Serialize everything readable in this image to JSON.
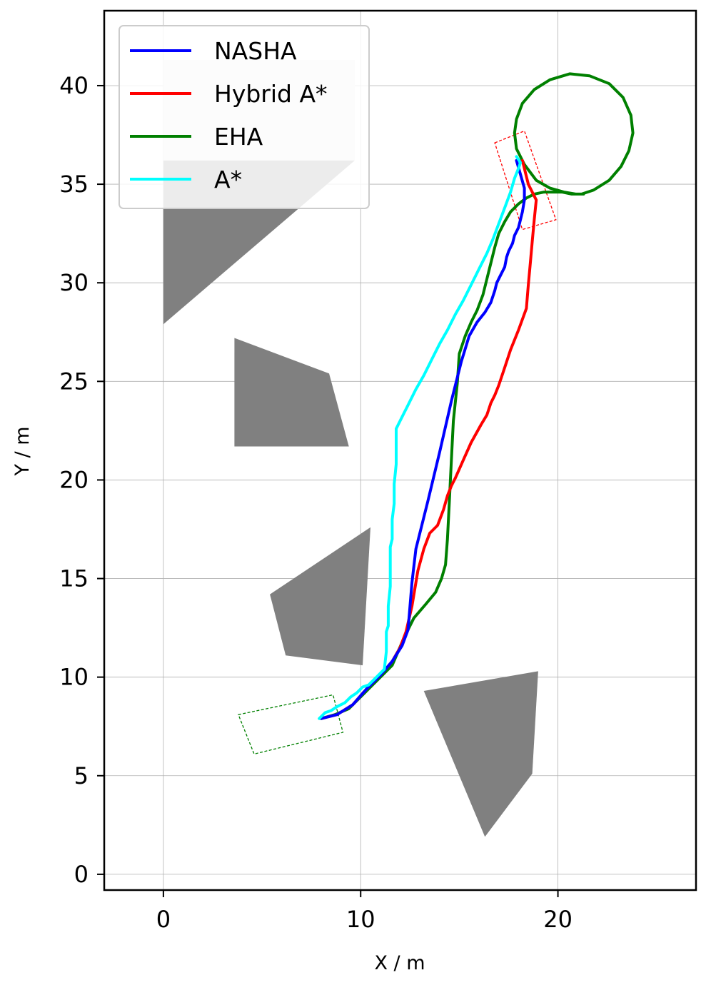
{
  "chart_data": {
    "type": "line",
    "xlabel": "X / m",
    "ylabel": "Y / m",
    "xlim": [
      -3.0,
      27.0
    ],
    "ylim": [
      -0.8,
      43.8
    ],
    "x_ticks": [
      0,
      10,
      20
    ],
    "y_ticks": [
      0,
      5,
      10,
      15,
      20,
      25,
      30,
      35,
      40
    ],
    "grid": true,
    "legend_position": "top-left",
    "series": [
      {
        "name": "NASHA",
        "color": "#0000ff",
        "points": [
          [
            8.0,
            7.9
          ],
          [
            8.8,
            8.1
          ],
          [
            9.6,
            8.6
          ],
          [
            10.3,
            9.4
          ],
          [
            11.0,
            10.1
          ],
          [
            11.6,
            10.8
          ],
          [
            12.1,
            11.6
          ],
          [
            12.4,
            12.4
          ],
          [
            12.6,
            14.8
          ],
          [
            12.8,
            16.5
          ],
          [
            13.4,
            18.9
          ],
          [
            14.0,
            21.4
          ],
          [
            14.6,
            24.0
          ],
          [
            15.1,
            26.0
          ],
          [
            15.5,
            27.3
          ],
          [
            15.9,
            28.0
          ],
          [
            16.3,
            28.5
          ],
          [
            16.6,
            29.0
          ],
          [
            16.8,
            29.6
          ],
          [
            16.9,
            30.0
          ],
          [
            17.1,
            30.4
          ],
          [
            17.3,
            30.8
          ],
          [
            17.4,
            31.3
          ],
          [
            17.5,
            31.6
          ],
          [
            17.7,
            32.0
          ],
          [
            17.8,
            32.4
          ],
          [
            18.0,
            32.8
          ],
          [
            18.1,
            33.2
          ],
          [
            18.2,
            33.6
          ],
          [
            18.3,
            34.2
          ],
          [
            18.3,
            34.8
          ],
          [
            18.1,
            35.5
          ],
          [
            17.9,
            36.2
          ]
        ]
      },
      {
        "name": "Hybrid A*",
        "color": "#ff0000",
        "points": [
          [
            8.0,
            7.9
          ],
          [
            8.8,
            8.1
          ],
          [
            9.6,
            8.6
          ],
          [
            10.3,
            9.4
          ],
          [
            11.0,
            10.1
          ],
          [
            11.6,
            10.8
          ],
          [
            12.0,
            11.5
          ],
          [
            12.3,
            12.3
          ],
          [
            12.6,
            13.6
          ],
          [
            12.9,
            15.4
          ],
          [
            13.2,
            16.5
          ],
          [
            13.5,
            17.3
          ],
          [
            13.9,
            17.7
          ],
          [
            14.2,
            18.5
          ],
          [
            14.4,
            19.2
          ],
          [
            14.6,
            19.7
          ],
          [
            14.8,
            20.1
          ],
          [
            15.2,
            21.0
          ],
          [
            15.6,
            21.9
          ],
          [
            16.1,
            22.8
          ],
          [
            16.4,
            23.3
          ],
          [
            16.6,
            23.9
          ],
          [
            16.8,
            24.3
          ],
          [
            17.0,
            24.8
          ],
          [
            17.3,
            25.7
          ],
          [
            17.6,
            26.6
          ],
          [
            18.0,
            27.6
          ],
          [
            18.4,
            28.7
          ],
          [
            18.5,
            29.9
          ],
          [
            18.6,
            31.0
          ],
          [
            18.7,
            32.1
          ],
          [
            18.8,
            33.2
          ],
          [
            18.9,
            34.2
          ],
          [
            18.5,
            35.0
          ],
          [
            18.3,
            35.8
          ],
          [
            18.2,
            36.2
          ]
        ]
      },
      {
        "name": "EHA",
        "color": "#008000",
        "points": [
          [
            8.0,
            7.9
          ],
          [
            8.7,
            8.1
          ],
          [
            9.4,
            8.4
          ],
          [
            10.0,
            9.0
          ],
          [
            10.6,
            9.6
          ],
          [
            11.1,
            10.1
          ],
          [
            11.6,
            10.6
          ],
          [
            11.9,
            11.3
          ],
          [
            12.2,
            12.0
          ],
          [
            12.7,
            13.0
          ],
          [
            13.3,
            13.7
          ],
          [
            13.8,
            14.3
          ],
          [
            14.1,
            15.0
          ],
          [
            14.3,
            15.7
          ],
          [
            14.4,
            17.0
          ],
          [
            14.5,
            19.0
          ],
          [
            14.6,
            21.0
          ],
          [
            14.7,
            23.0
          ],
          [
            14.9,
            24.9
          ],
          [
            15.0,
            26.4
          ],
          [
            15.3,
            27.3
          ],
          [
            15.6,
            28.0
          ],
          [
            15.9,
            28.6
          ],
          [
            16.2,
            29.4
          ],
          [
            16.4,
            30.2
          ],
          [
            16.6,
            31.0
          ],
          [
            16.8,
            31.8
          ],
          [
            17.0,
            32.5
          ],
          [
            17.3,
            33.1
          ],
          [
            17.6,
            33.6
          ],
          [
            18.0,
            34.0
          ],
          [
            18.4,
            34.3
          ],
          [
            18.8,
            34.5
          ],
          [
            19.3,
            34.6
          ],
          [
            19.8,
            34.6
          ],
          [
            20.2,
            34.6
          ],
          [
            20.7,
            34.5
          ],
          [
            21.2,
            34.5
          ],
          [
            21.8,
            34.7
          ],
          [
            22.6,
            35.2
          ],
          [
            23.2,
            35.9
          ],
          [
            23.6,
            36.7
          ],
          [
            23.8,
            37.6
          ],
          [
            23.7,
            38.5
          ],
          [
            23.3,
            39.4
          ],
          [
            22.6,
            40.1
          ],
          [
            21.6,
            40.5
          ],
          [
            20.6,
            40.6
          ],
          [
            19.6,
            40.3
          ],
          [
            18.8,
            39.8
          ],
          [
            18.2,
            39.1
          ],
          [
            17.9,
            38.3
          ],
          [
            17.8,
            37.6
          ],
          [
            17.9,
            36.8
          ],
          [
            18.3,
            36.0
          ],
          [
            18.9,
            35.2
          ],
          [
            19.6,
            34.8
          ],
          [
            20.3,
            34.6
          ],
          [
            20.9,
            34.5
          ],
          [
            21.3,
            34.5
          ]
        ]
      },
      {
        "name": "A*",
        "color": "#00ffff",
        "points": [
          [
            7.9,
            7.9
          ],
          [
            8.2,
            8.2
          ],
          [
            8.5,
            8.3
          ],
          [
            8.8,
            8.5
          ],
          [
            9.2,
            8.7
          ],
          [
            9.5,
            9.0
          ],
          [
            9.8,
            9.2
          ],
          [
            10.1,
            9.5
          ],
          [
            10.4,
            9.6
          ],
          [
            10.7,
            9.9
          ],
          [
            10.9,
            10.1
          ],
          [
            11.1,
            10.3
          ],
          [
            11.2,
            10.4
          ],
          [
            11.3,
            11.3
          ],
          [
            11.3,
            12.3
          ],
          [
            11.4,
            12.6
          ],
          [
            11.4,
            13.6
          ],
          [
            11.5,
            14.6
          ],
          [
            11.5,
            15.6
          ],
          [
            11.5,
            16.6
          ],
          [
            11.6,
            17.0
          ],
          [
            11.6,
            18.0
          ],
          [
            11.7,
            18.8
          ],
          [
            11.7,
            19.8
          ],
          [
            11.8,
            20.8
          ],
          [
            11.8,
            21.7
          ],
          [
            11.8,
            22.6
          ],
          [
            12.1,
            23.2
          ],
          [
            12.4,
            23.8
          ],
          [
            12.8,
            24.6
          ],
          [
            13.2,
            25.3
          ],
          [
            13.6,
            26.1
          ],
          [
            14.0,
            26.9
          ],
          [
            14.4,
            27.6
          ],
          [
            14.8,
            28.4
          ],
          [
            15.2,
            29.1
          ],
          [
            15.6,
            29.9
          ],
          [
            16.0,
            30.7
          ],
          [
            16.4,
            31.5
          ],
          [
            16.7,
            32.2
          ],
          [
            17.0,
            33.0
          ],
          [
            17.3,
            33.8
          ],
          [
            17.6,
            34.6
          ],
          [
            17.8,
            35.3
          ],
          [
            18.0,
            35.8
          ],
          [
            18.1,
            36.1
          ],
          [
            17.9,
            36.4
          ]
        ]
      }
    ],
    "obstacles": [
      {
        "color": "#e6e6e6",
        "points": [
          [
            0.0,
            41.3
          ],
          [
            9.7,
            41.3
          ],
          [
            9.7,
            36.2
          ],
          [
            0.0,
            36.2
          ]
        ]
      },
      {
        "color": "#808080",
        "points": [
          [
            0.0,
            36.2
          ],
          [
            9.7,
            36.2
          ],
          [
            0.0,
            27.9
          ]
        ]
      },
      {
        "color": "#808080",
        "points": [
          [
            3.6,
            27.2
          ],
          [
            8.4,
            25.4
          ],
          [
            9.4,
            21.7
          ],
          [
            3.6,
            21.7
          ]
        ]
      },
      {
        "color": "#808080",
        "points": [
          [
            5.4,
            14.2
          ],
          [
            10.5,
            17.6
          ],
          [
            10.1,
            10.6
          ],
          [
            6.2,
            11.1
          ]
        ]
      },
      {
        "color": "#808080",
        "points": [
          [
            13.2,
            9.3
          ],
          [
            19.0,
            10.3
          ],
          [
            18.7,
            5.1
          ],
          [
            16.3,
            1.9
          ]
        ]
      }
    ],
    "vehicle_boxes": [
      {
        "color": "#008000",
        "points": [
          [
            3.8,
            8.1
          ],
          [
            8.6,
            9.1
          ],
          [
            9.1,
            7.2
          ],
          [
            4.6,
            6.1
          ]
        ]
      },
      {
        "color": "#ff0000",
        "points": [
          [
            16.8,
            37.1
          ],
          [
            18.3,
            37.7
          ],
          [
            19.9,
            33.2
          ],
          [
            18.2,
            32.7
          ]
        ]
      }
    ]
  }
}
